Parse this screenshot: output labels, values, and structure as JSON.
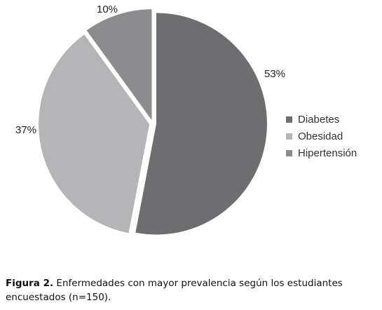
{
  "chart_data": {
    "type": "pie",
    "categories": [
      "Diabetes",
      "Obesidad",
      "Hipertensión"
    ],
    "values": [
      53,
      37,
      10
    ],
    "labels": [
      "53%",
      "37%",
      "10%"
    ],
    "colors": [
      "#6e6e70",
      "#b5b5b8",
      "#8c8c8f"
    ],
    "legend_placement": "right",
    "start_angle_deg": 0,
    "direction": "clockwise"
  },
  "caption": {
    "label": "Figura 2.",
    "text": "Enfermedades con mayor prevalencia según los estudiantes encuestados (n=150)."
  }
}
